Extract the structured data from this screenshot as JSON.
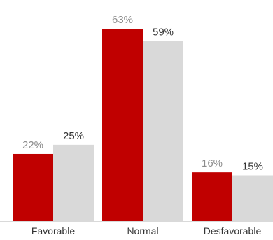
{
  "chart_data": {
    "type": "bar",
    "categories": [
      "Favorable",
      "Normal",
      "Desfavorable"
    ],
    "series": [
      {
        "values": [
          22,
          63,
          16
        ],
        "labels": [
          "22%",
          "63%",
          "16%"
        ],
        "color": "#c00000"
      },
      {
        "values": [
          25,
          59,
          15
        ],
        "labels": [
          "25%",
          "59%",
          "15%"
        ],
        "color": "#d9d9d9"
      }
    ],
    "unit": "%",
    "title": "",
    "xlabel": "",
    "ylabel": "",
    "ylim": [
      0,
      65
    ],
    "grid": false,
    "legend": "none",
    "baseline_color": "#d9d9d9",
    "label_colors": [
      "#8c8c8c",
      "#333333"
    ]
  }
}
